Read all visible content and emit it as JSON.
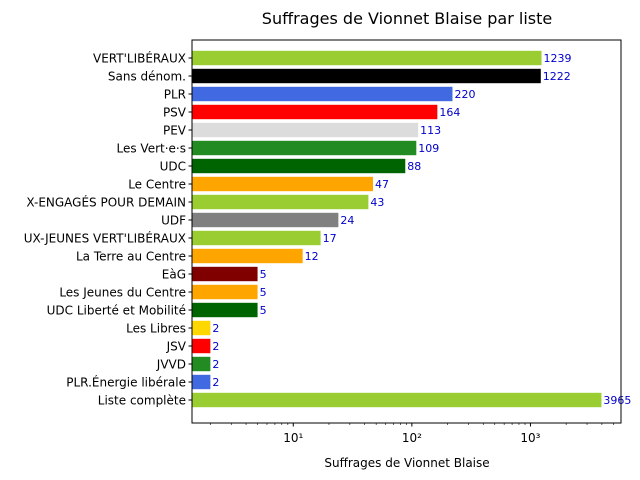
{
  "chart_data": {
    "type": "bar",
    "orientation": "horizontal",
    "title": "Suffrages de Vionnet Blaise par liste",
    "xlabel": "Suffrages de Vionnet Blaise",
    "ylabel": "",
    "xscale": "log",
    "xlim": [
      1.4,
      5800
    ],
    "x_tick_labels": [
      "10¹",
      "10²",
      "10³"
    ],
    "x_tick_values": [
      10,
      100,
      1000
    ],
    "grid": false,
    "value_label_color": "#0000cd",
    "categories": [
      "VERT'LIBÉRAUX",
      "Sans dénom.",
      "PLR",
      "PSV",
      "PEV",
      "Les Vert·e·s",
      "UDC",
      "Le Centre",
      "X-ENGAGÉS POUR DEMAIN",
      "UDF",
      "UX-JEUNES VERT'LIBÉRAUX",
      "La Terre au Centre",
      "EàG",
      "Les Jeunes du Centre",
      "UDC Liberté et Mobilité",
      "Les Libres",
      "JSV",
      "JVVD",
      "PLR.Énergie libérale",
      "Liste complète"
    ],
    "values": [
      1239,
      1222,
      220,
      164,
      113,
      109,
      88,
      47,
      43,
      24,
      17,
      12,
      5,
      5,
      5,
      2,
      2,
      2,
      2,
      3965
    ],
    "colors": [
      "#9acd32",
      "#000000",
      "#4169e1",
      "#ff0000",
      "#dcdcdc",
      "#228b22",
      "#006400",
      "#ffa500",
      "#9acd32",
      "#808080",
      "#9acd32",
      "#ffa500",
      "#800000",
      "#ffa500",
      "#006400",
      "#ffd700",
      "#ff0000",
      "#228b22",
      "#4169e1",
      "#9acd32"
    ]
  }
}
